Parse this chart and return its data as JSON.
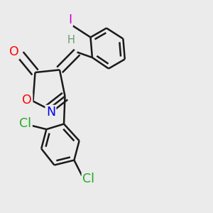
{
  "bg_color": "#ebebeb",
  "bond_color": "#1a1a1a",
  "bond_width": 1.8,
  "atom_bg": "#ebebeb",
  "colors": {
    "O": "#ff0000",
    "N": "#0000ee",
    "H": "#6b9a6b",
    "I": "#cc00cc",
    "Cl": "#22aa22"
  }
}
